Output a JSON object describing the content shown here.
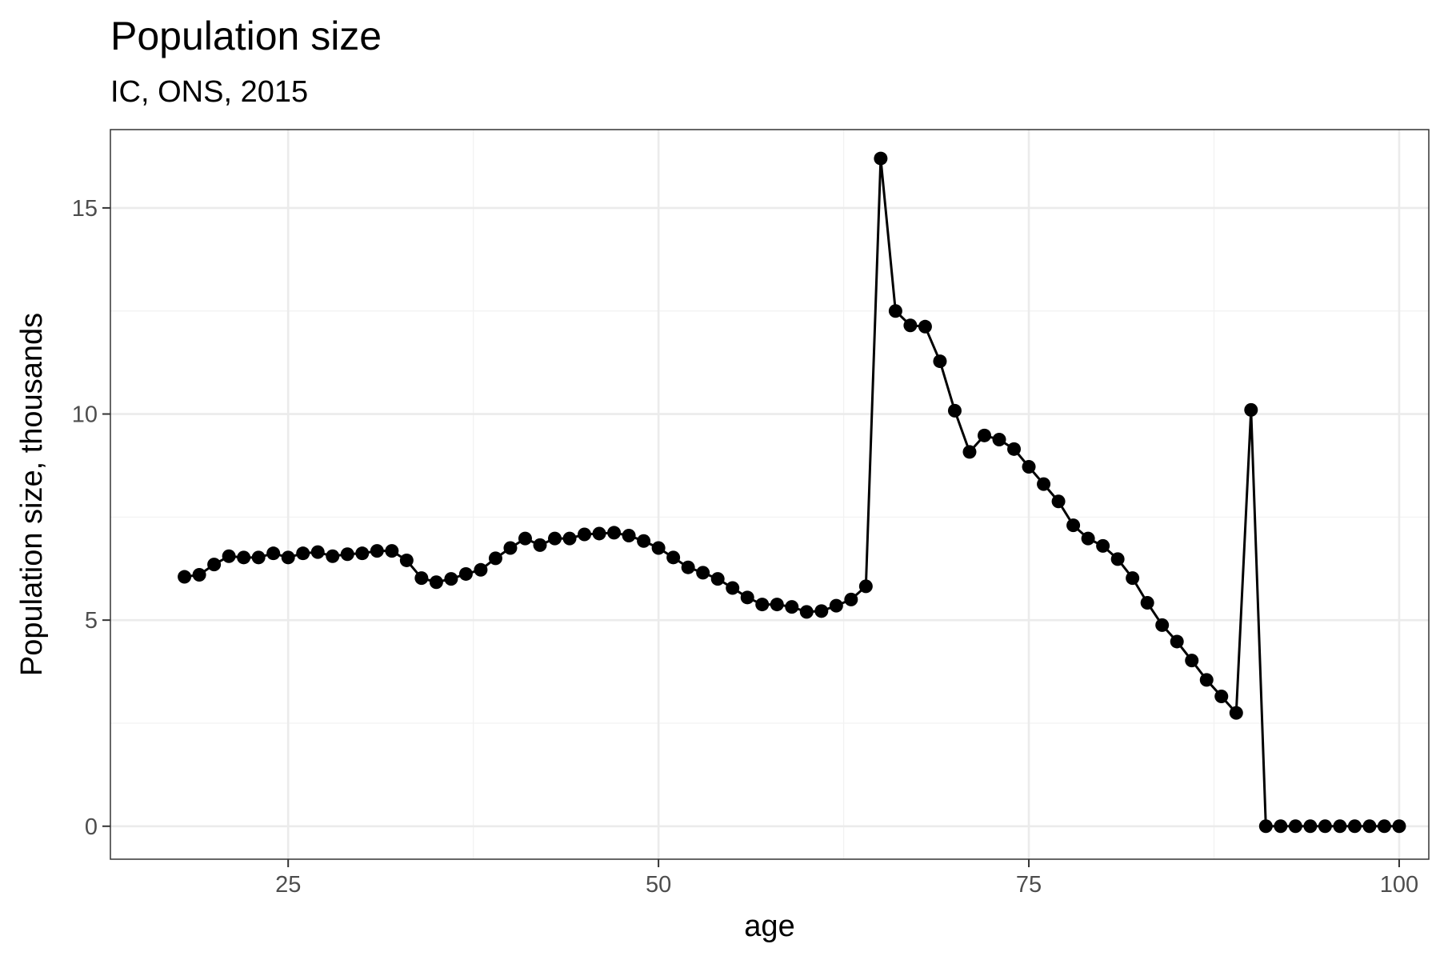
{
  "chart_data": {
    "type": "line",
    "title": "Population size",
    "subtitle": "IC, ONS, 2015",
    "xlabel": "age",
    "ylabel": "Population size, thousands",
    "xlim": [
      13,
      102
    ],
    "ylim": [
      -0.8,
      16.9
    ],
    "x_ticks": [
      25,
      50,
      75,
      100
    ],
    "x_tick_labels": [
      "25",
      "50",
      "75",
      "100"
    ],
    "y_ticks": [
      0,
      5,
      10,
      15
    ],
    "y_tick_labels": [
      "0",
      "5",
      "10",
      "15"
    ],
    "grid": true,
    "markers": true,
    "series": [
      {
        "color": "#000000",
        "x": [
          18,
          19,
          20,
          21,
          22,
          23,
          24,
          25,
          26,
          27,
          28,
          29,
          30,
          31,
          32,
          33,
          34,
          35,
          36,
          37,
          38,
          39,
          40,
          41,
          42,
          43,
          44,
          45,
          46,
          47,
          48,
          49,
          50,
          51,
          52,
          53,
          54,
          55,
          56,
          57,
          58,
          59,
          60,
          61,
          62,
          63,
          64,
          65,
          66,
          67,
          68,
          69,
          70,
          71,
          72,
          73,
          74,
          75,
          76,
          77,
          78,
          79,
          80,
          81,
          82,
          83,
          84,
          85,
          86,
          87,
          88,
          89,
          90,
          91,
          92,
          93,
          94,
          95,
          96,
          97,
          98,
          99,
          100
        ],
        "values": [
          6.05,
          6.1,
          6.35,
          6.55,
          6.52,
          6.52,
          6.62,
          6.52,
          6.62,
          6.65,
          6.55,
          6.6,
          6.62,
          6.68,
          6.68,
          6.45,
          6.02,
          5.92,
          6.0,
          6.12,
          6.22,
          6.5,
          6.75,
          6.98,
          6.82,
          6.98,
          6.98,
          7.08,
          7.1,
          7.12,
          7.05,
          6.92,
          6.75,
          6.52,
          6.28,
          6.15,
          6.0,
          5.78,
          5.55,
          5.38,
          5.38,
          5.32,
          5.2,
          5.22,
          5.35,
          5.5,
          5.82,
          16.2,
          12.5,
          12.15,
          12.12,
          11.28,
          10.08,
          9.08,
          9.48,
          9.38,
          9.15,
          8.72,
          8.3,
          7.88,
          7.3,
          6.98,
          6.8,
          6.48,
          6.02,
          5.42,
          4.88,
          4.48,
          4.02,
          3.55,
          3.15,
          2.75,
          10.1,
          0,
          0,
          0,
          0,
          0,
          0,
          0,
          0,
          0,
          0
        ]
      }
    ]
  }
}
